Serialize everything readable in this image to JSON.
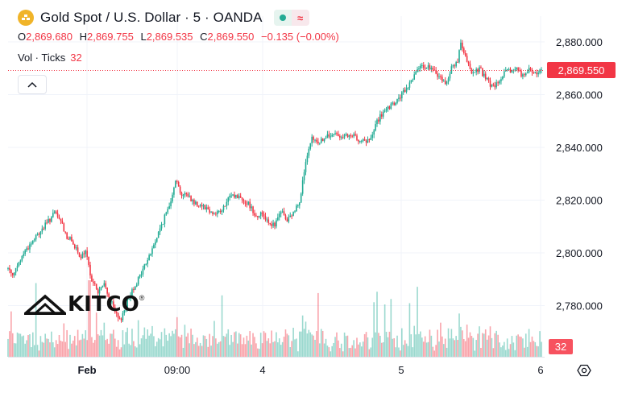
{
  "header": {
    "title": "Gold Spot / U.S. Dollar · 5 · OANDA",
    "symbol_icon": "gold-bars-icon",
    "status_icons": [
      "market-open-dot-icon",
      "delayed-wave-icon"
    ]
  },
  "ohlc": {
    "o_label": "O",
    "o_value": "2,869.680",
    "h_label": "H",
    "h_value": "2,869.755",
    "l_label": "L",
    "l_value": "2,869.535",
    "c_label": "C",
    "c_value": "2,869.550",
    "change": "−0.135 (−0.00%)"
  },
  "volume": {
    "label": "Vol · Ticks",
    "value": "32"
  },
  "last_price_label": "2,869.550",
  "volume_label": "32",
  "logo": {
    "text": "KITCO",
    "mark": "®"
  },
  "colors": {
    "up": "#22ab94",
    "down": "#f23645",
    "grid": "#f0f3fa",
    "axis_text": "#131722"
  },
  "chart_data": {
    "type": "candlestick",
    "title": "Gold Spot / U.S. Dollar · 5 · OANDA",
    "y_ticks": [
      "2,880.000",
      "2,860.000",
      "2,840.000",
      "2,820.000",
      "2,800.000",
      "2,780.000"
    ],
    "y_tick_values": [
      2880,
      2860,
      2840,
      2820,
      2800,
      2780
    ],
    "x_ticks": [
      "Feb",
      "09:00",
      "4",
      "5",
      "6"
    ],
    "ylim": [
      2765,
      2885
    ],
    "last_price": 2869.55,
    "grid": true,
    "price_path": [
      [
        0,
        2794
      ],
      [
        4,
        2792
      ],
      [
        10,
        2800
      ],
      [
        18,
        2806
      ],
      [
        26,
        2812
      ],
      [
        30,
        2815
      ],
      [
        34,
        2812
      ],
      [
        38,
        2806
      ],
      [
        42,
        2804
      ],
      [
        46,
        2798
      ],
      [
        50,
        2800
      ],
      [
        54,
        2790
      ],
      [
        58,
        2785
      ],
      [
        62,
        2788
      ],
      [
        66,
        2782
      ],
      [
        70,
        2776
      ],
      [
        72,
        2774
      ],
      [
        76,
        2780
      ],
      [
        80,
        2786
      ],
      [
        84,
        2790
      ],
      [
        88,
        2795
      ],
      [
        92,
        2800
      ],
      [
        96,
        2806
      ],
      [
        100,
        2812
      ],
      [
        104,
        2818
      ],
      [
        108,
        2828
      ],
      [
        112,
        2822
      ],
      [
        116,
        2822
      ],
      [
        120,
        2819
      ],
      [
        126,
        2818
      ],
      [
        132,
        2815
      ],
      [
        138,
        2816
      ],
      [
        144,
        2822
      ],
      [
        150,
        2821
      ],
      [
        156,
        2818
      ],
      [
        160,
        2814
      ],
      [
        164,
        2815
      ],
      [
        168,
        2812
      ],
      [
        172,
        2810
      ],
      [
        176,
        2816
      ],
      [
        180,
        2812
      ],
      [
        184,
        2815
      ],
      [
        188,
        2820
      ],
      [
        192,
        2834
      ],
      [
        196,
        2843
      ],
      [
        200,
        2842
      ],
      [
        206,
        2844
      ],
      [
        212,
        2845
      ],
      [
        218,
        2844
      ],
      [
        224,
        2844
      ],
      [
        230,
        2842
      ],
      [
        234,
        2843
      ],
      [
        238,
        2850
      ],
      [
        242,
        2853
      ],
      [
        246,
        2855
      ],
      [
        250,
        2857
      ],
      [
        254,
        2860
      ],
      [
        258,
        2863
      ],
      [
        262,
        2868
      ],
      [
        266,
        2870
      ],
      [
        270,
        2871
      ],
      [
        274,
        2869
      ],
      [
        278,
        2867
      ],
      [
        282,
        2864
      ],
      [
        286,
        2870
      ],
      [
        290,
        2873
      ],
      [
        292,
        2879
      ],
      [
        296,
        2872
      ],
      [
        300,
        2868
      ],
      [
        304,
        2870
      ],
      [
        308,
        2866
      ],
      [
        312,
        2863
      ],
      [
        316,
        2864
      ],
      [
        320,
        2868
      ],
      [
        324,
        2869
      ],
      [
        328,
        2870
      ],
      [
        332,
        2867
      ],
      [
        336,
        2869
      ],
      [
        340,
        2868
      ],
      [
        344,
        2869.55
      ]
    ],
    "volume_ticks": [
      12,
      20,
      28,
      32
    ],
    "volume_last": 32
  }
}
